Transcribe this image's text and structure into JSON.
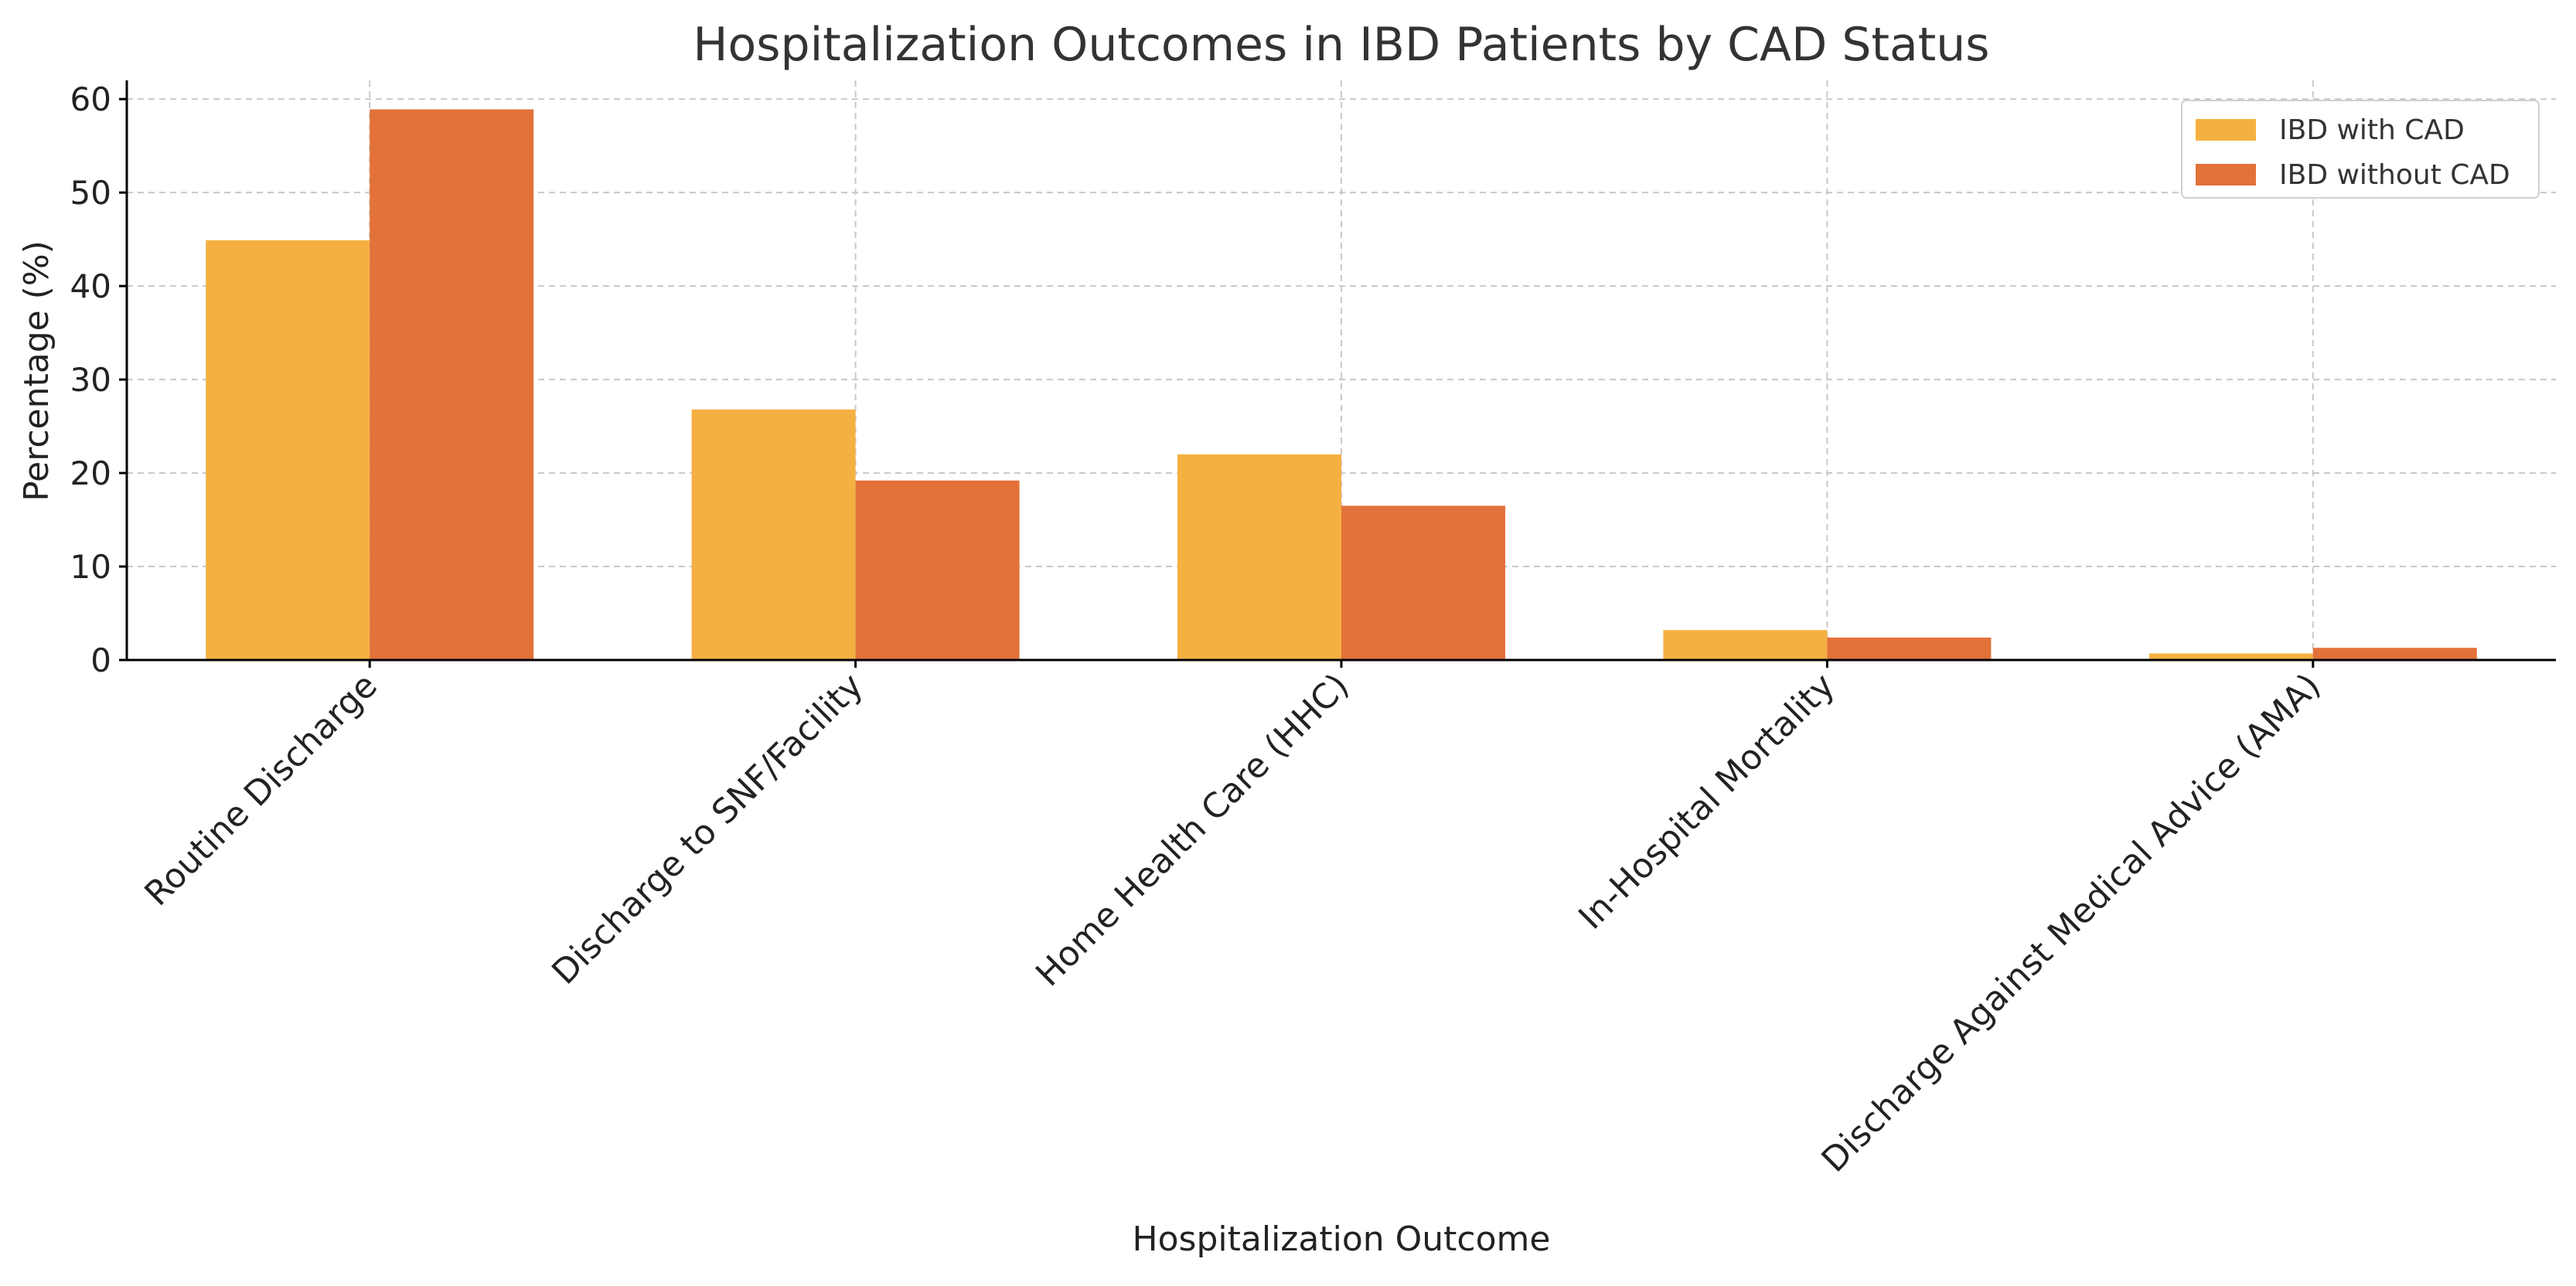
{
  "chart_data": {
    "type": "bar",
    "title": "Hospitalization Outcomes in IBD Patients by CAD Status",
    "xlabel": "Hospitalization Outcome",
    "ylabel": "Percentage (%)",
    "categories": [
      "Routine Discharge",
      "Discharge to SNF/Facility",
      "Home Health Care (HHC)",
      "In-Hospital Mortality",
      "Discharge Against Medical Advice (AMA)"
    ],
    "series": [
      {
        "name": "IBD with CAD",
        "color": "#F4B142",
        "values": [
          44.9,
          26.8,
          22.0,
          3.2,
          0.7
        ]
      },
      {
        "name": "IBD without CAD",
        "color": "#E3713A",
        "values": [
          58.9,
          19.2,
          16.5,
          2.4,
          1.3
        ]
      }
    ],
    "ylim": [
      0,
      62
    ],
    "yticks": [
      0,
      10,
      20,
      30,
      40,
      50,
      60
    ],
    "grid": true,
    "legend_position": "top-right"
  }
}
